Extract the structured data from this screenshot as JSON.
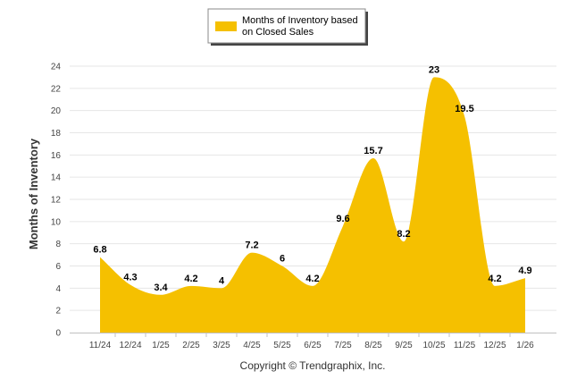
{
  "chart_data": {
    "type": "area",
    "categories": [
      "11/24",
      "12/24",
      "1/25",
      "2/25",
      "3/25",
      "4/25",
      "5/25",
      "6/25",
      "7/25",
      "8/25",
      "9/25",
      "10/25",
      "11/25",
      "12/25",
      "1/26"
    ],
    "series": [
      {
        "name": "Months of Inventory based on Closed Sales",
        "values": [
          6.8,
          4.3,
          3.4,
          4.2,
          4,
          7.2,
          6,
          4.2,
          9.6,
          15.7,
          8.2,
          23,
          19.5,
          4.2,
          4.9
        ],
        "color": "#F5C000"
      }
    ],
    "legend": {
      "label_line1": "Months of Inventory based",
      "label_line2": "on Closed Sales",
      "position": "top-center"
    },
    "ylabel": "Months of Inventory",
    "xlabel": "",
    "ylim": [
      0,
      24
    ],
    "yticks": [
      0,
      2,
      4,
      6,
      8,
      10,
      12,
      14,
      16,
      18,
      20,
      22,
      24
    ],
    "grid": true
  },
  "footer": {
    "copyright": "Copyright © Trendgraphix, Inc."
  }
}
